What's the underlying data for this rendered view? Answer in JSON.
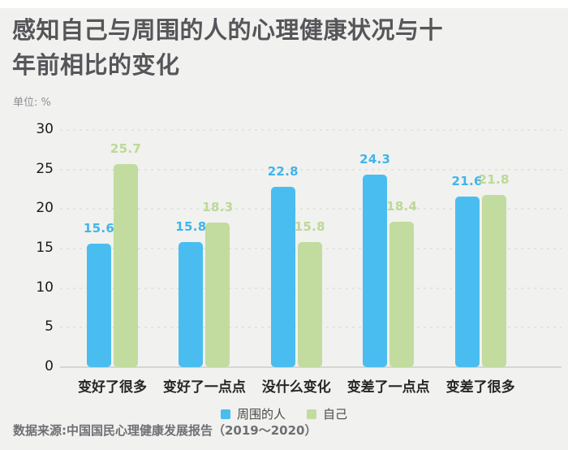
{
  "page": {
    "background": "#f1f1ef"
  },
  "header": {
    "title_line1": "感知自己与周围的人的心理健康状况与十",
    "title_line2": "年前相比的变化",
    "unit_label": "单位: %"
  },
  "chart_data": {
    "type": "bar",
    "title": "感知自己与周围的人的心理健康状况与十年前相比的变化",
    "unit": "%",
    "categories": [
      "变好了很多",
      "变好了一点点",
      "没什么变化",
      "变差了一点点",
      "变差了很多"
    ],
    "series": [
      {
        "name": "周围的人",
        "color": "#4abdf0",
        "label_color": "#41b5ea",
        "values": [
          15.6,
          15.8,
          22.8,
          24.3,
          21.6
        ]
      },
      {
        "name": "自己",
        "color": "#c1dc9e",
        "label_color": "#bcd996",
        "values": [
          25.7,
          18.3,
          15.8,
          18.4,
          21.8
        ]
      }
    ],
    "ylim": [
      0,
      30
    ],
    "ytick_step": 5,
    "yticks": [
      0,
      5,
      10,
      15,
      20,
      25,
      30
    ],
    "grid": true,
    "legend_position": "bottom"
  },
  "footer": {
    "source_label": "数据来源:中国国民心理健康发展报告（2019～2020）"
  }
}
